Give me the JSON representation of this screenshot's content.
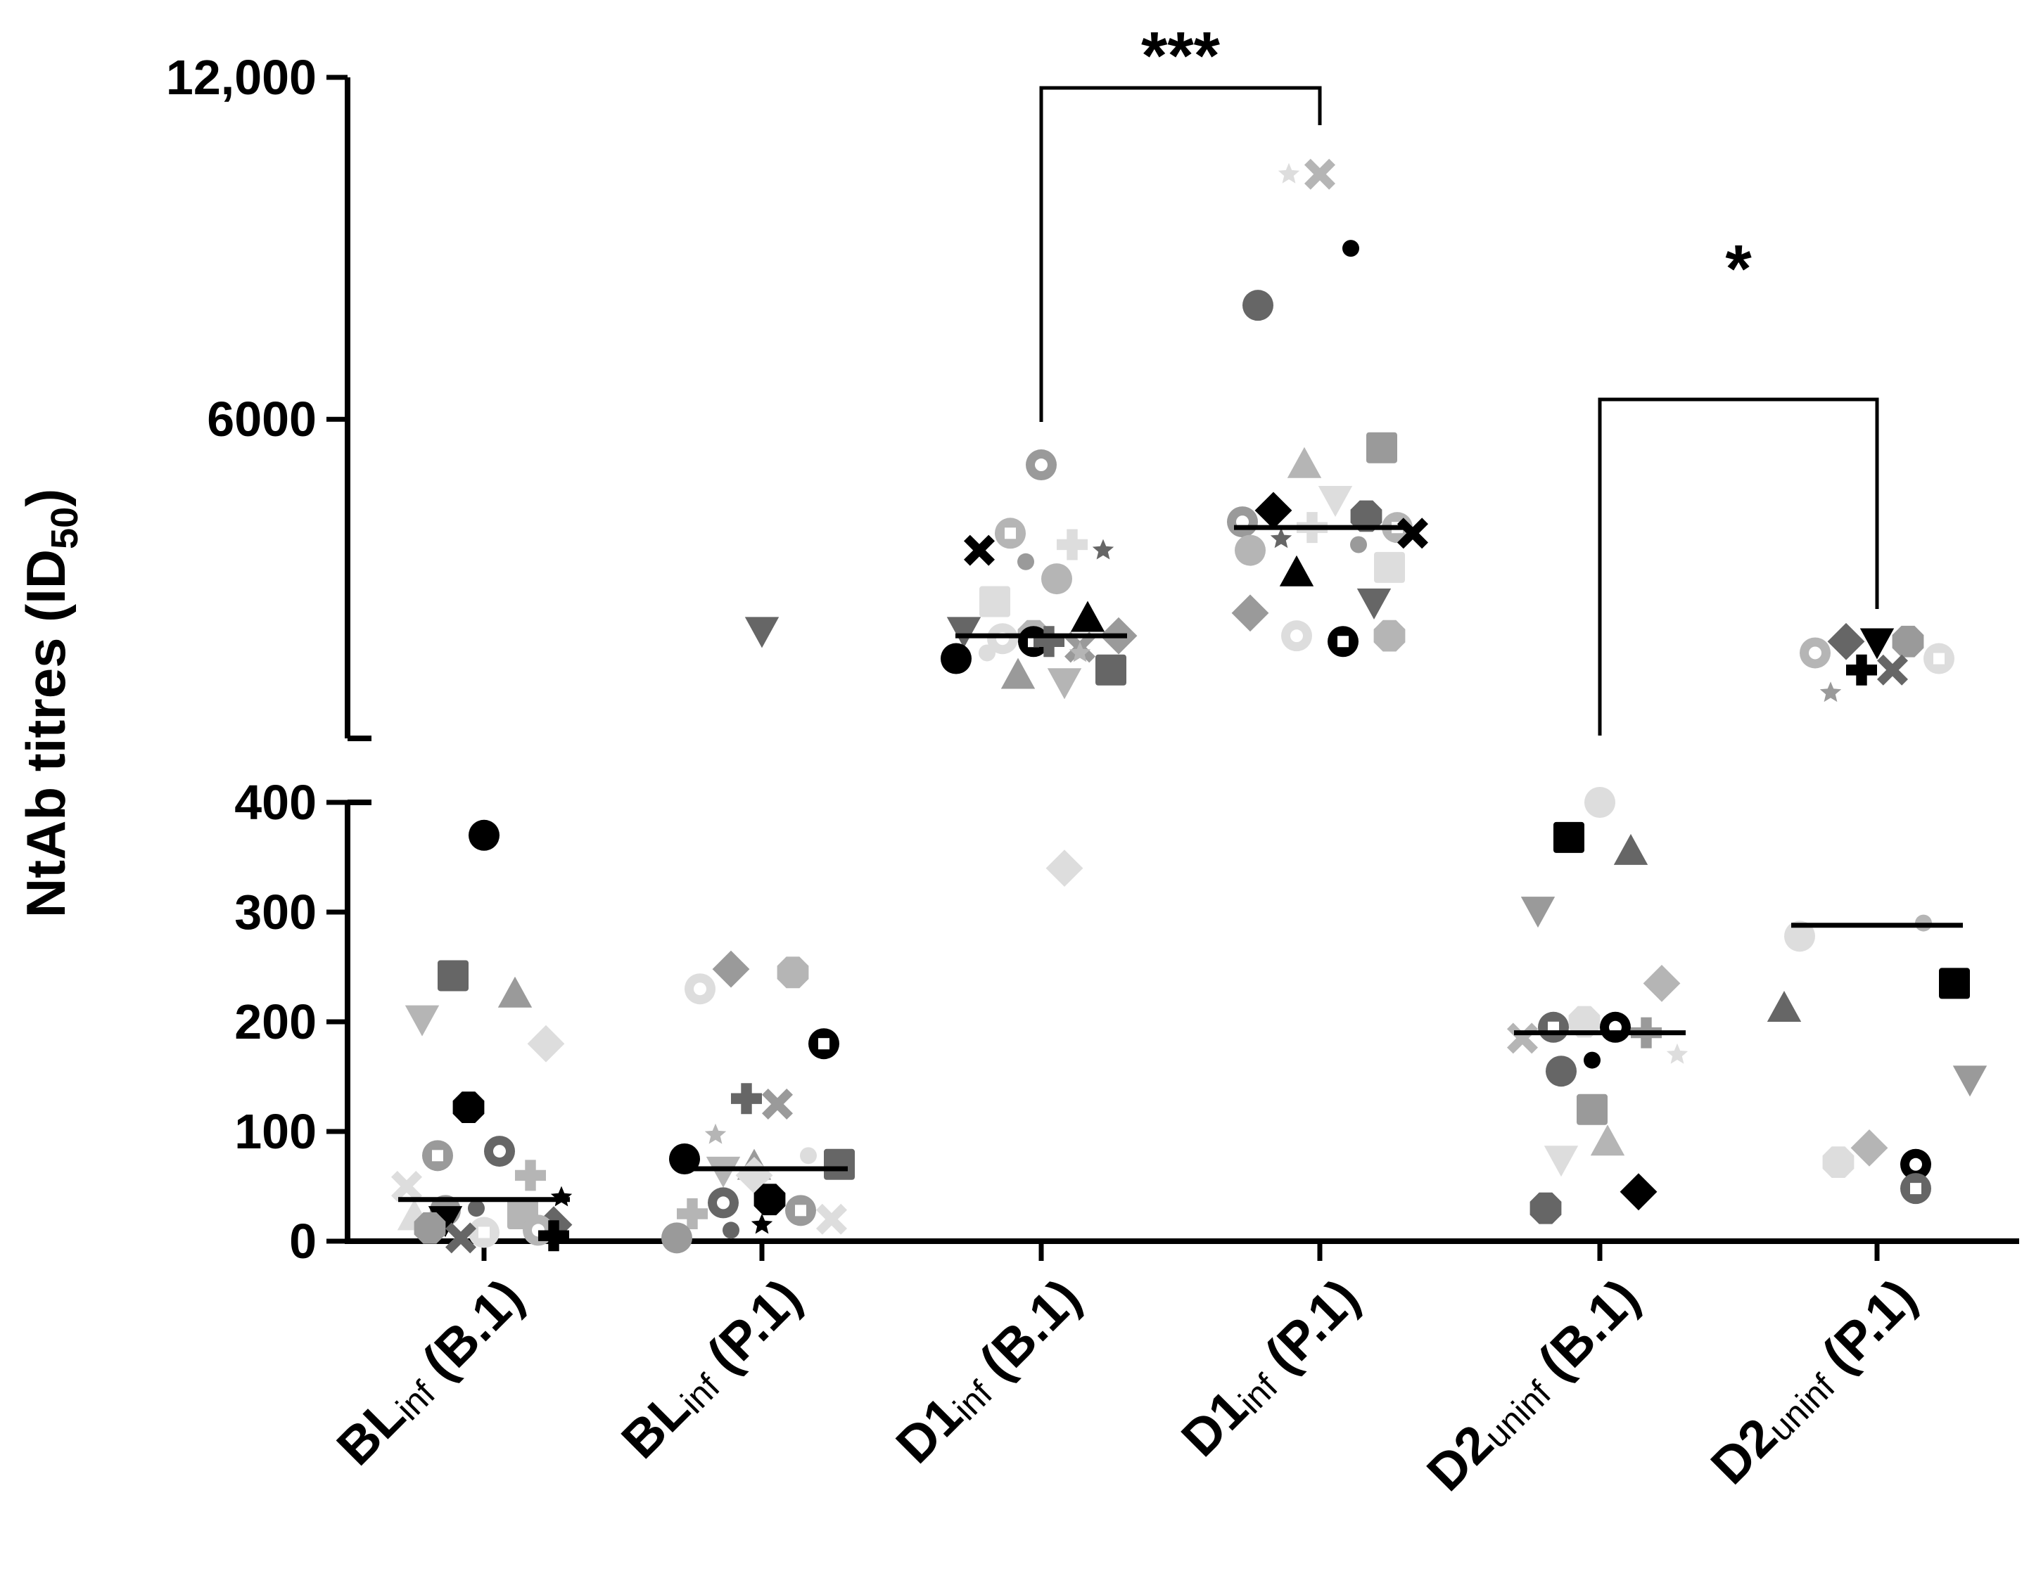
{
  "chart_data": {
    "type": "scatter",
    "subtype": "dot-plot with median lines, broken y-axis",
    "ylabel": "NtAb titres (ID",
    "ylabel_sub": "50",
    "ylabel_close": ")",
    "y_lower_range": [
      0,
      400
    ],
    "y_upper_range": [
      400,
      12000
    ],
    "y_lower_ticks": [
      "0",
      "100",
      "200",
      "300",
      "400"
    ],
    "y_upper_ticks": [
      "6000",
      "12,000"
    ],
    "y_upper_tick_values": [
      6000,
      12000
    ],
    "categories": [
      {
        "main": "BL",
        "sub": "inf",
        "strain": " (B.1)"
      },
      {
        "main": "BL",
        "sub": "inf",
        "strain": " (P.1)"
      },
      {
        "main": "D1",
        "sub": "inf",
        "strain": " (B.1)"
      },
      {
        "main": "D1",
        "sub": "inf",
        "strain": " (P.1)"
      },
      {
        "main": "D2",
        "sub": "uninf",
        "strain": " (B.1)"
      },
      {
        "main": "D2",
        "sub": "uninf",
        "strain": " (P.1)"
      }
    ],
    "medians": [
      38,
      66,
      2200,
      4100,
      190,
      288
    ],
    "series": [
      {
        "name": "BLinf (B.1)",
        "values": [
          370,
          242,
          225,
          203,
          180,
          122,
          82,
          78,
          60,
          50,
          40,
          30,
          28,
          25,
          22,
          20,
          15,
          12,
          10,
          8,
          5,
          3
        ]
      },
      {
        "name": "BLinf (P.1)",
        "values": [
          2300,
          248,
          245,
          230,
          180,
          130,
          125,
          97,
          78,
          75,
          70,
          68,
          65,
          60,
          38,
          35,
          28,
          25,
          20,
          15,
          10,
          3
        ]
      },
      {
        "name": "D1inf (B.1)",
        "values": [
          5200,
          4000,
          3800,
          3700,
          3700,
          3500,
          3200,
          2800,
          2500,
          2300,
          2200,
          2200,
          2150,
          2100,
          2100,
          2000,
          1900,
          1900,
          1800,
          1600,
          1500,
          1400,
          340
        ]
      },
      {
        "name": "D1inf (P.1)",
        "values": [
          10300,
          10300,
          9000,
          8000,
          5500,
          5200,
          4600,
          4400,
          4300,
          4200,
          4100,
          4100,
          4000,
          3900,
          3800,
          3700,
          3400,
          3300,
          2800,
          2600,
          2200,
          2200,
          2100
        ]
      },
      {
        "name": "D2uninf (B.1)",
        "values": [
          400,
          368,
          355,
          302,
          235,
          200,
          195,
          195,
          190,
          185,
          170,
          165,
          155,
          120,
          90,
          75,
          45,
          30
        ]
      },
      {
        "name": "D2uninf (P.1)",
        "values": [
          2100,
          2100,
          2100,
          1900,
          1800,
          1600,
          1600,
          1200,
          290,
          278,
          235,
          212,
          148,
          85,
          72,
          70,
          48
        ]
      }
    ],
    "significance": [
      {
        "between": [
          2,
          3
        ],
        "label": "***"
      },
      {
        "between": [
          4,
          5
        ],
        "label": "*"
      }
    ],
    "marker_colors": [
      "#000000",
      "#666666",
      "#9a9a9a",
      "#b5b5b5",
      "#dddddd"
    ]
  }
}
